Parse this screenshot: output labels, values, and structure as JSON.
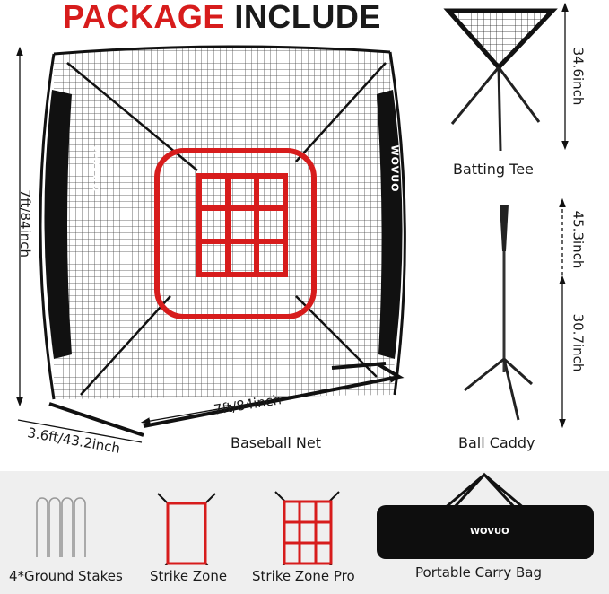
{
  "title": {
    "part1": "PACKAGE",
    "part2": "INCLUDE",
    "accent_color": "#d71c1c"
  },
  "brand": "WOVUO",
  "net": {
    "label": "Baseball Net",
    "height": "7ft/84inch",
    "width": "7ft/84inch",
    "depth": "3.6ft/43.2inch"
  },
  "caddy_top": {
    "label": "Batting Tee",
    "height": "34.6inch"
  },
  "tee": {
    "label": "Ball Caddy",
    "max_height": "45.3inch",
    "min_height": "30.7inch"
  },
  "accessories": [
    {
      "label": "4*Ground Stakes",
      "icon": "ground-stakes-icon"
    },
    {
      "label": "Strike Zone",
      "icon": "strike-zone-icon"
    },
    {
      "label": "Strike Zone Pro",
      "icon": "strike-zone-pro-icon"
    },
    {
      "label": "Portable Carry Bag",
      "icon": "carry-bag-icon"
    }
  ]
}
